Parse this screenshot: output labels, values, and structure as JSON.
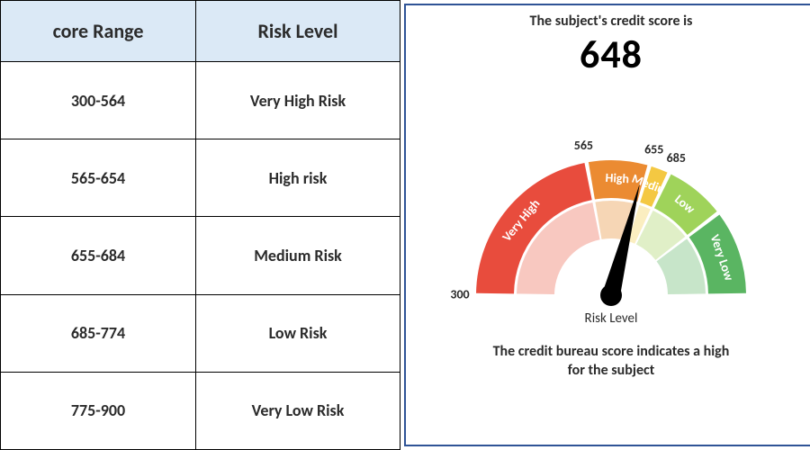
{
  "table": {
    "columns": [
      "core Range",
      "Risk Level"
    ],
    "rows": [
      [
        "300-564",
        "Very High Risk"
      ],
      [
        "565-654",
        "High risk"
      ],
      [
        "655-684",
        "Medium Risk"
      ],
      [
        "685-774",
        "Low Risk"
      ],
      [
        "775-900",
        "Very Low Risk"
      ]
    ],
    "header_bg": "#dbe9f6",
    "border_color": "#000000",
    "header_fontsize": 22,
    "cell_fontsize": 18
  },
  "gauge": {
    "title": "The subject's credit score is",
    "score": "648",
    "caption_line1": "The credit bureau score indicates a high",
    "caption_line2": "for the subject",
    "risk_label": "Risk Level",
    "panel_border": "#2f5496",
    "min": 300,
    "max": 900,
    "ticks": [
      {
        "value": 300,
        "label": "300"
      },
      {
        "value": 565,
        "label": "565"
      },
      {
        "value": 655,
        "label": "655"
      },
      {
        "value": 685,
        "label": "685"
      }
    ],
    "segments": [
      {
        "from": 300,
        "to": 565,
        "color": "#e84c3d",
        "pale": "#f8c8c0",
        "label": "Very High"
      },
      {
        "from": 565,
        "to": 655,
        "color": "#eb8b32",
        "pale": "#f6d6b5",
        "label": "High"
      },
      {
        "from": 655,
        "to": 685,
        "color": "#f4c842",
        "pale": "#fbeec0",
        "label": "Medium"
      },
      {
        "from": 685,
        "to": 775,
        "color": "#9fd35a",
        "pale": "#e0efc7",
        "label": "Low"
      },
      {
        "from": 775,
        "to": 900,
        "color": "#5ab562",
        "pale": "#c7e5c9",
        "label": "Very Low"
      }
    ],
    "needle_color": "#000000",
    "outer_radius": 150,
    "inner_radius": 108,
    "pale_outer_radius": 105,
    "pale_inner_radius": 63,
    "segment_label_fontsize": 14,
    "tick_fontsize": 14
  }
}
